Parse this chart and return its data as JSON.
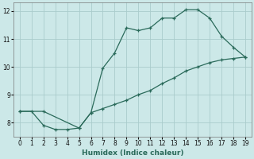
{
  "xlabel": "Humidex (Indice chaleur)",
  "bg_color": "#cce8e8",
  "grid_color": "#aacccc",
  "line_color": "#2a6a5a",
  "xlim": [
    -0.5,
    19.5
  ],
  "ylim": [
    7.5,
    12.3
  ],
  "xticks": [
    0,
    1,
    2,
    3,
    4,
    5,
    6,
    7,
    8,
    9,
    10,
    11,
    12,
    13,
    14,
    15,
    16,
    17,
    18,
    19
  ],
  "yticks": [
    8,
    9,
    10,
    11,
    12
  ],
  "curve_bottom_x": [
    0,
    1,
    2,
    3,
    4,
    5,
    6,
    7,
    8,
    9,
    10,
    11,
    12,
    13,
    14,
    15,
    16,
    17,
    18,
    19
  ],
  "curve_bottom_y": [
    8.4,
    8.4,
    7.9,
    7.75,
    7.75,
    7.8,
    8.35,
    8.5,
    8.65,
    8.8,
    9.0,
    9.15,
    9.4,
    9.6,
    9.85,
    10.0,
    10.15,
    10.25,
    10.3,
    10.35
  ],
  "curve_top_x": [
    0,
    2,
    5,
    6,
    7,
    8,
    9,
    10,
    11,
    12,
    13,
    14,
    15,
    16,
    17,
    18,
    19
  ],
  "curve_top_y": [
    8.4,
    8.4,
    7.8,
    8.35,
    9.95,
    10.5,
    11.4,
    11.3,
    11.4,
    11.75,
    11.75,
    12.05,
    12.05,
    11.75,
    11.1,
    10.7,
    10.35
  ]
}
